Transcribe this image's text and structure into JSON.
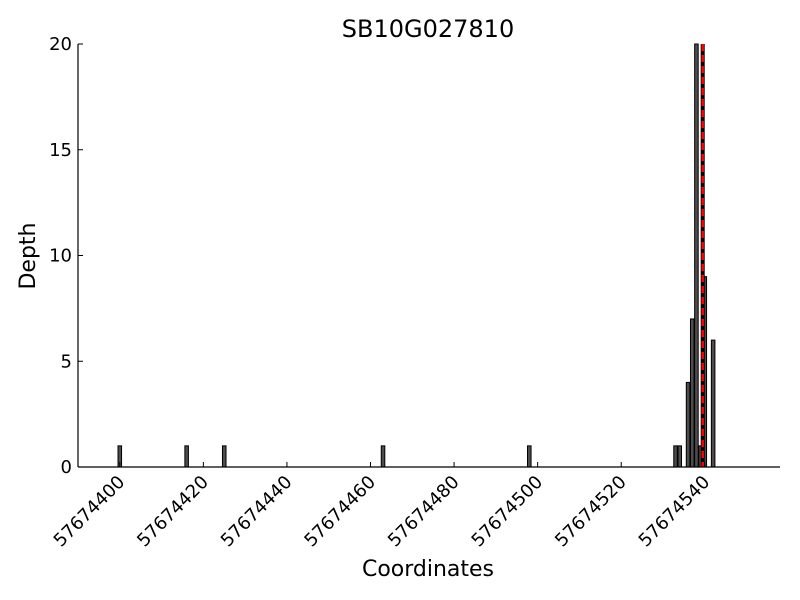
{
  "chart_data": {
    "type": "bar",
    "title": "SB10G027810",
    "xlabel": "Coordinates",
    "ylabel": "Depth",
    "xlim": [
      57674390,
      57674558
    ],
    "ylim": [
      0,
      20
    ],
    "x_ticks": [
      57674400,
      57674420,
      57674440,
      57674460,
      57674480,
      57674500,
      57674520,
      57674540
    ],
    "y_ticks": [
      0,
      5,
      10,
      15,
      20
    ],
    "bar_color": "#4d4d4d",
    "marker_line": {
      "x": 57674539.5,
      "color": "#ff0000",
      "style": "dashed"
    },
    "points": [
      {
        "x": 57674400,
        "y": 1
      },
      {
        "x": 57674416,
        "y": 1
      },
      {
        "x": 57674425,
        "y": 1
      },
      {
        "x": 57674463,
        "y": 1
      },
      {
        "x": 57674498,
        "y": 1
      },
      {
        "x": 57674533,
        "y": 1
      },
      {
        "x": 57674534,
        "y": 1
      },
      {
        "x": 57674536,
        "y": 4
      },
      {
        "x": 57674537,
        "y": 7
      },
      {
        "x": 57674538,
        "y": 20
      },
      {
        "x": 57674539,
        "y": 1
      },
      {
        "x": 57674540,
        "y": 9
      },
      {
        "x": 57674542,
        "y": 6
      }
    ]
  }
}
